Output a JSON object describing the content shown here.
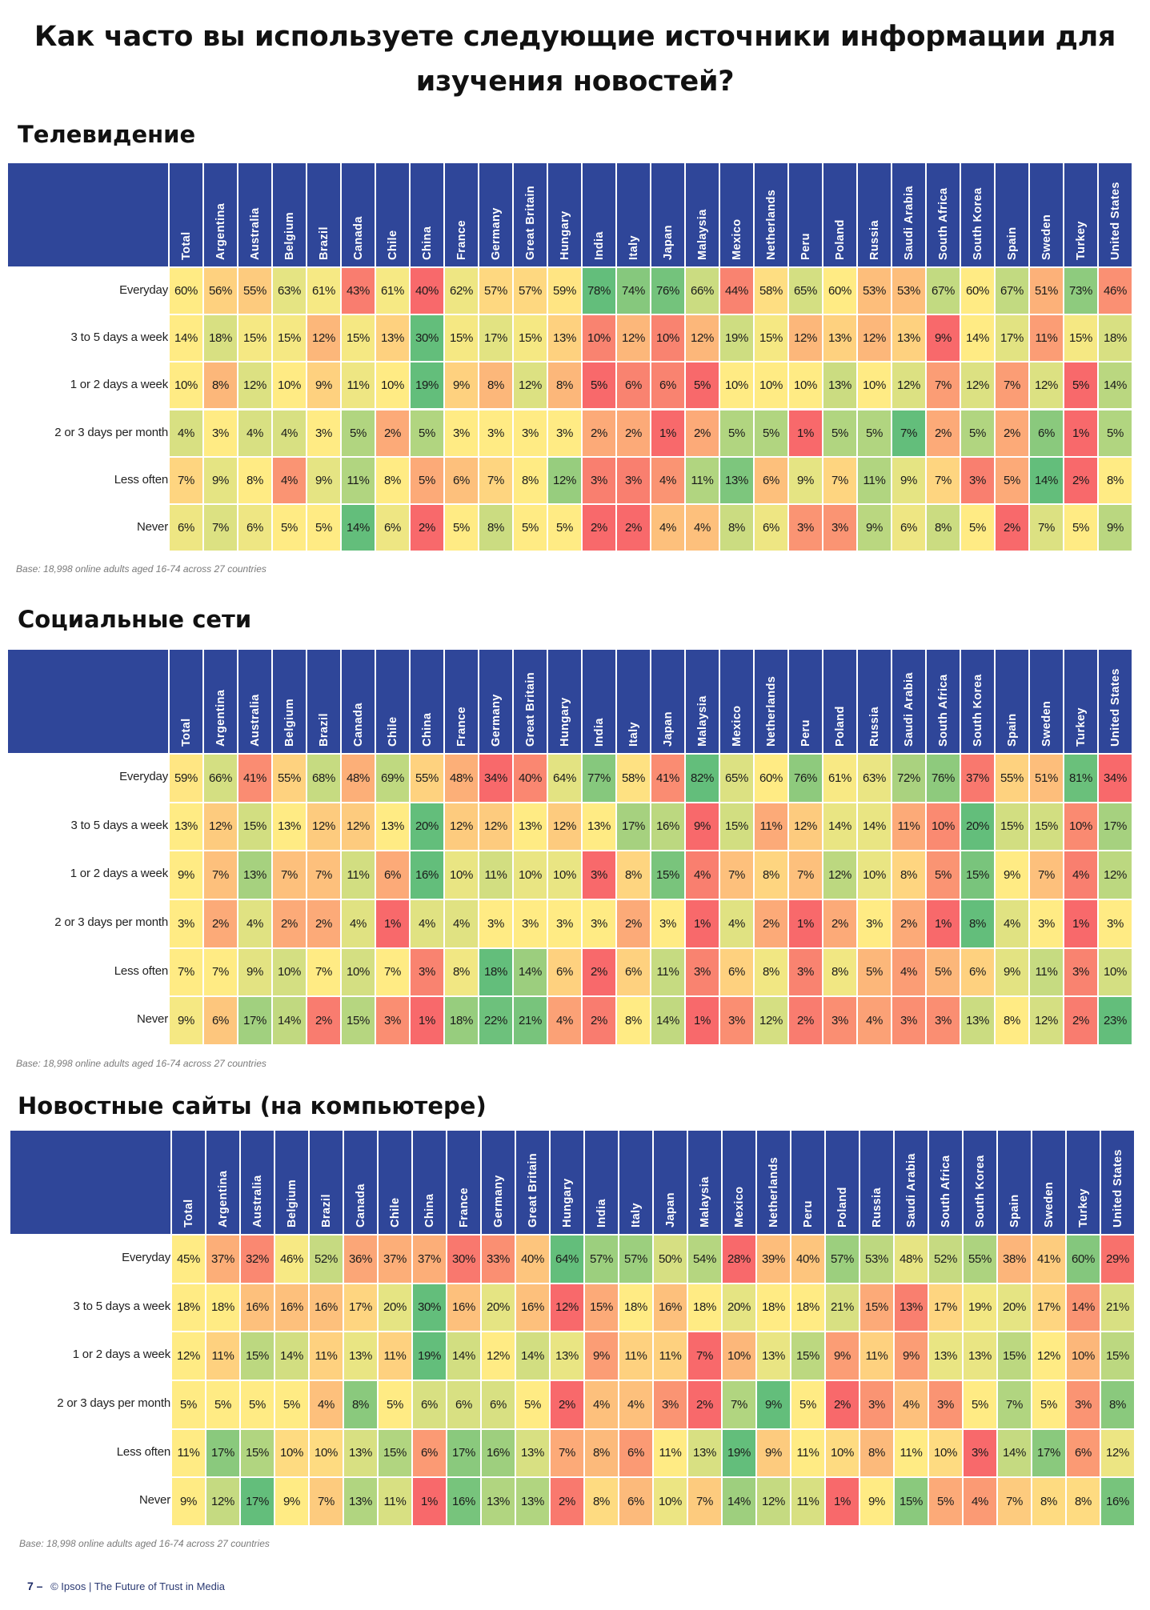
{
  "page": {
    "title": "Как часто вы используете следующие источники информации для изучения новостей?",
    "title_line1": "Как часто вы используете следующие источники информации для",
    "title_line2": "изучения новостей?",
    "footer_page": "7 –",
    "footer_text": "© Ipsos | The Future of Trust in Media"
  },
  "chart_data": [
    {
      "type": "heatmap",
      "title": "Телевидение",
      "note": "Base: 18,998 online adults aged 16-74 across 27 countries",
      "unit": "%",
      "columns": [
        "Total",
        "Argentina",
        "Australia",
        "Belgium",
        "Brazil",
        "Canada",
        "Chile",
        "China",
        "France",
        "Germany",
        "Great Britain",
        "Hungary",
        "India",
        "Italy",
        "Japan",
        "Malaysia",
        "Mexico",
        "Netherlands",
        "Peru",
        "Poland",
        "Russia",
        "Saudi Arabia",
        "South Africa",
        "South Korea",
        "Spain",
        "Sweden",
        "Turkey",
        "United States"
      ],
      "rows": [
        "Everyday",
        "3 to 5 days a week",
        "1 or 2 days a week",
        "2 or 3 days per month",
        "Less often",
        "Never"
      ],
      "values": [
        [
          60,
          56,
          55,
          63,
          61,
          43,
          61,
          40,
          62,
          57,
          57,
          59,
          78,
          74,
          76,
          66,
          44,
          58,
          65,
          60,
          53,
          53,
          67,
          60,
          67,
          51,
          73,
          46
        ],
        [
          14,
          18,
          15,
          15,
          12,
          15,
          13,
          30,
          15,
          17,
          15,
          13,
          10,
          12,
          10,
          12,
          19,
          15,
          12,
          13,
          12,
          13,
          9,
          14,
          17,
          11,
          15,
          18
        ],
        [
          10,
          8,
          12,
          10,
          9,
          11,
          10,
          19,
          9,
          8,
          12,
          8,
          5,
          6,
          6,
          5,
          10,
          10,
          10,
          13,
          10,
          12,
          7,
          12,
          7,
          12,
          5,
          14
        ],
        [
          4,
          3,
          4,
          4,
          3,
          5,
          2,
          5,
          3,
          3,
          3,
          3,
          2,
          2,
          1,
          2,
          5,
          5,
          1,
          5,
          5,
          7,
          2,
          5,
          2,
          6,
          1,
          5
        ],
        [
          7,
          9,
          8,
          4,
          9,
          11,
          8,
          5,
          6,
          7,
          8,
          12,
          3,
          3,
          4,
          11,
          13,
          6,
          9,
          7,
          11,
          9,
          7,
          3,
          5,
          14,
          2,
          8
        ],
        [
          6,
          7,
          6,
          5,
          5,
          14,
          6,
          2,
          5,
          8,
          5,
          5,
          2,
          2,
          4,
          4,
          8,
          6,
          3,
          3,
          9,
          6,
          8,
          5,
          2,
          7,
          5,
          9
        ]
      ]
    },
    {
      "type": "heatmap",
      "title": "Социальные сети",
      "note": "Base: 18,998 online adults aged 16-74 across 27 countries",
      "unit": "%",
      "columns": [
        "Total",
        "Argentina",
        "Australia",
        "Belgium",
        "Brazil",
        "Canada",
        "Chile",
        "China",
        "France",
        "Germany",
        "Great Britain",
        "Hungary",
        "India",
        "Italy",
        "Japan",
        "Malaysia",
        "Mexico",
        "Netherlands",
        "Peru",
        "Poland",
        "Russia",
        "Saudi Arabia",
        "South Africa",
        "South Korea",
        "Spain",
        "Sweden",
        "Turkey",
        "United States"
      ],
      "rows": [
        "Everyday",
        "3 to 5 days a week",
        "1 or 2 days a week",
        "2 or 3 days per month",
        "Less often",
        "Never"
      ],
      "values": [
        [
          59,
          66,
          41,
          55,
          68,
          48,
          69,
          55,
          48,
          34,
          40,
          64,
          77,
          58,
          41,
          82,
          65,
          60,
          76,
          61,
          63,
          72,
          76,
          37,
          55,
          51,
          81,
          34
        ],
        [
          13,
          12,
          15,
          13,
          12,
          12,
          13,
          20,
          12,
          12,
          13,
          12,
          13,
          17,
          16,
          9,
          15,
          11,
          12,
          14,
          14,
          11,
          10,
          20,
          15,
          15,
          10,
          17
        ],
        [
          9,
          7,
          13,
          7,
          7,
          11,
          6,
          16,
          10,
          11,
          10,
          10,
          3,
          8,
          15,
          4,
          7,
          8,
          7,
          12,
          10,
          8,
          5,
          15,
          9,
          7,
          4,
          12
        ],
        [
          3,
          2,
          4,
          2,
          2,
          4,
          1,
          4,
          4,
          3,
          3,
          3,
          3,
          2,
          3,
          1,
          4,
          2,
          1,
          2,
          3,
          2,
          1,
          8,
          4,
          3,
          1,
          3
        ],
        [
          7,
          7,
          9,
          10,
          7,
          10,
          7,
          3,
          8,
          18,
          14,
          6,
          2,
          6,
          11,
          3,
          6,
          8,
          3,
          8,
          5,
          4,
          5,
          6,
          9,
          11,
          3,
          10
        ],
        [
          9,
          6,
          17,
          14,
          2,
          15,
          3,
          1,
          18,
          22,
          21,
          4,
          2,
          8,
          14,
          1,
          3,
          12,
          2,
          3,
          4,
          3,
          3,
          13,
          8,
          12,
          2,
          23
        ]
      ]
    },
    {
      "type": "heatmap",
      "title": "Новостные сайты (на компьютере)",
      "note": "Base: 18,998 online adults aged 16-74 across 27 countries",
      "unit": "%",
      "columns": [
        "Total",
        "Argentina",
        "Australia",
        "Belgium",
        "Brazil",
        "Canada",
        "Chile",
        "China",
        "France",
        "Germany",
        "Great Britain",
        "Hungary",
        "India",
        "Italy",
        "Japan",
        "Malaysia",
        "Mexico",
        "Netherlands",
        "Peru",
        "Poland",
        "Russia",
        "Saudi Arabia",
        "South Africa",
        "South Korea",
        "Spain",
        "Sweden",
        "Turkey",
        "United States"
      ],
      "rows": [
        "Everyday",
        "3 to 5 days a week",
        "1 or 2 days a week",
        "2 or 3 days per month",
        "Less often",
        "Never"
      ],
      "values": [
        [
          45,
          37,
          32,
          46,
          52,
          36,
          37,
          37,
          30,
          33,
          40,
          64,
          57,
          57,
          50,
          54,
          28,
          39,
          40,
          57,
          53,
          48,
          52,
          55,
          38,
          41,
          60,
          29
        ],
        [
          18,
          18,
          16,
          16,
          16,
          17,
          20,
          30,
          16,
          20,
          16,
          12,
          15,
          18,
          16,
          18,
          20,
          18,
          18,
          21,
          15,
          13,
          17,
          19,
          20,
          17,
          14,
          21
        ],
        [
          12,
          11,
          15,
          14,
          11,
          13,
          11,
          19,
          14,
          12,
          14,
          13,
          9,
          11,
          11,
          7,
          10,
          13,
          15,
          9,
          11,
          9,
          13,
          13,
          15,
          12,
          10,
          15
        ],
        [
          5,
          5,
          5,
          5,
          4,
          8,
          5,
          6,
          6,
          6,
          5,
          2,
          4,
          4,
          3,
          2,
          7,
          9,
          5,
          2,
          3,
          4,
          3,
          5,
          7,
          5,
          3,
          8
        ],
        [
          11,
          17,
          15,
          10,
          10,
          13,
          15,
          6,
          17,
          16,
          13,
          7,
          8,
          6,
          11,
          13,
          19,
          9,
          11,
          10,
          8,
          11,
          10,
          3,
          14,
          17,
          6,
          12
        ],
        [
          9,
          12,
          17,
          9,
          7,
          13,
          11,
          1,
          16,
          13,
          13,
          2,
          8,
          6,
          10,
          7,
          14,
          12,
          11,
          1,
          9,
          15,
          5,
          4,
          7,
          8,
          8,
          16
        ]
      ]
    }
  ],
  "colors": {
    "header_bg": "#2f4699",
    "low": "#f8696b",
    "mid": "#ffeb84",
    "high": "#63be7b"
  }
}
